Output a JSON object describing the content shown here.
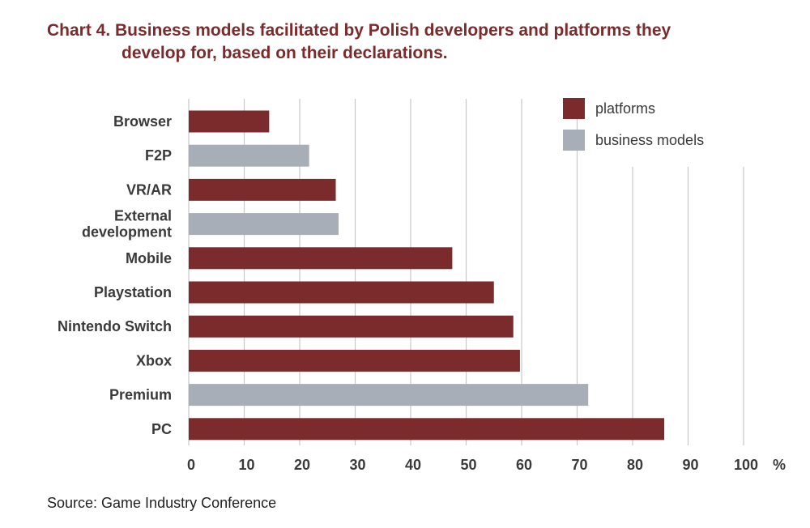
{
  "title_line1": "Chart 4. Business models facilitated by Polish developers and platforms they",
  "title_line2": "develop for, based on their declarations.",
  "source": "Source: Game Industry Conference",
  "unit": "%",
  "colors": {
    "platforms": "#7b2b2b",
    "business_models": "#a7aeb7",
    "grid": "#c8c8c8",
    "title": "#7b2b2b"
  },
  "chart_data": {
    "type": "bar",
    "orientation": "horizontal",
    "title": "Chart 4. Business models facilitated by Polish developers and platforms they develop for, based on their declarations.",
    "xlabel": "%",
    "ylabel": "",
    "xlim": [
      0,
      100
    ],
    "xticks": [
      0,
      10,
      20,
      30,
      40,
      50,
      60,
      70,
      80,
      90,
      100
    ],
    "grid": true,
    "legend_position": "top-right",
    "legend": [
      {
        "name": "platforms",
        "key": "platforms"
      },
      {
        "name": "business models",
        "key": "business_models"
      }
    ],
    "categories": [
      "Browser",
      "F2P",
      "VR/AR",
      "External development",
      "Mobile",
      "Playstation",
      "Nintendo Switch",
      "Xbox",
      "Premium",
      "PC"
    ],
    "category_lines": [
      [
        "Browser"
      ],
      [
        "F2P"
      ],
      [
        "VR/AR"
      ],
      [
        "External",
        "development"
      ],
      [
        "Mobile"
      ],
      [
        "Playstation"
      ],
      [
        "Nintendo Switch"
      ],
      [
        "Xbox"
      ],
      [
        "Premium"
      ],
      [
        "PC"
      ]
    ],
    "values": [
      14.5,
      21.7,
      26.5,
      27.0,
      47.5,
      55.0,
      58.5,
      59.7,
      72.0,
      85.7
    ],
    "groups": [
      "platforms",
      "business_models",
      "platforms",
      "business_models",
      "platforms",
      "platforms",
      "platforms",
      "platforms",
      "business_models",
      "platforms"
    ]
  }
}
